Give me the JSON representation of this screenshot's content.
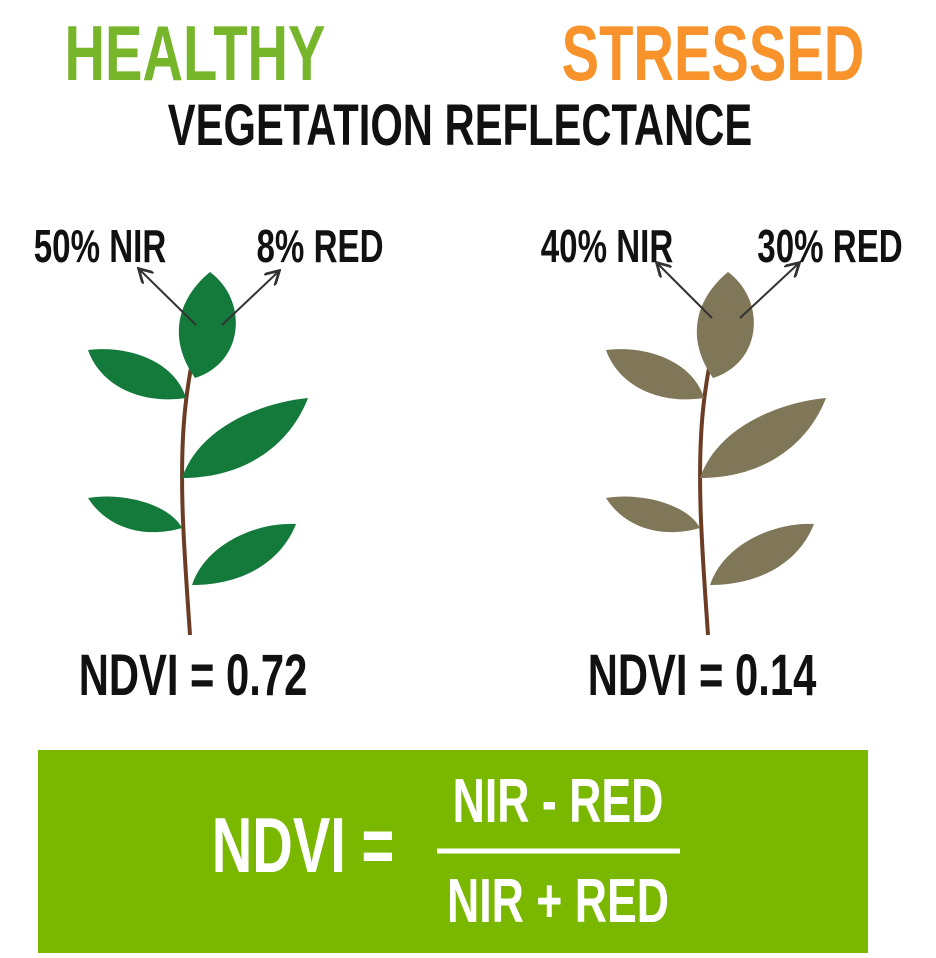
{
  "header": {
    "healthy": "HEALTHY",
    "stressed": "STRESSED",
    "subtitle": "VEGETATION REFLECTANCE"
  },
  "plants": [
    {
      "nir_label": "50% NIR",
      "red_label": "8% RED",
      "ndvi_label": "NDVI = 0.72"
    },
    {
      "nir_label": "40% NIR",
      "red_label": "30% RED",
      "ndvi_label": "NDVI = 0.14"
    }
  ],
  "formula": {
    "lhs": "NDVI =",
    "numerator": "NIR - RED",
    "denominator": "NIR + RED"
  }
}
